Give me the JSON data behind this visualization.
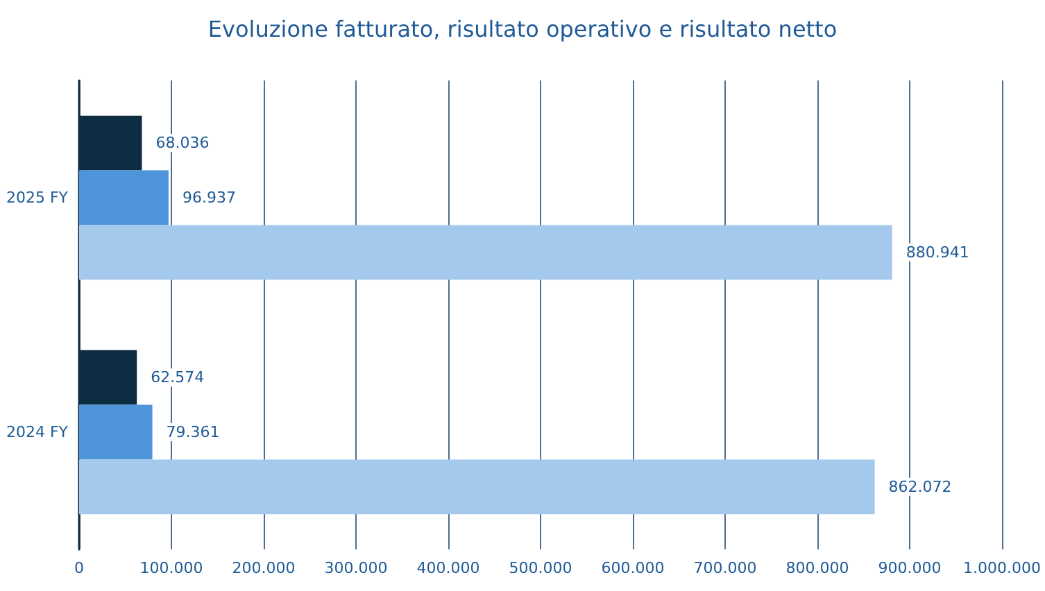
{
  "chart_data": {
    "type": "bar",
    "orientation": "horizontal",
    "title": "Evoluzione fatturato, risultato operativo e risultato netto",
    "categories": [
      "2025 FY",
      "2024 FY"
    ],
    "series": [
      {
        "color": "#0c2d42",
        "values": [
          68036,
          62574
        ],
        "value_labels": [
          "68.036",
          "62.574"
        ]
      },
      {
        "color": "#4d94db",
        "values": [
          96937,
          79361
        ],
        "value_labels": [
          "96.937",
          "79.361"
        ]
      },
      {
        "color": "#a4c9ed",
        "values": [
          880941,
          862072
        ],
        "value_labels": [
          "880.941",
          "862.072"
        ]
      }
    ],
    "xlim": [
      0,
      1000000
    ],
    "xticks": [
      0,
      {
        "value": 100000,
        "label": "100.000"
      },
      {
        "value": 200000,
        "label": "200.000"
      },
      {
        "value": 300000,
        "label": "300.000"
      },
      {
        "value": 400000,
        "label": "400.000"
      },
      {
        "value": 500000,
        "label": "500.000"
      },
      {
        "value": 600000,
        "label": "600.000"
      },
      {
        "value": 700000,
        "label": "700.000"
      },
      {
        "value": 800000,
        "label": "800.000"
      },
      {
        "value": 900000,
        "label": "900.000"
      },
      {
        "value": 1000000,
        "label": "1.000.000"
      }
    ],
    "grid": "x"
  }
}
